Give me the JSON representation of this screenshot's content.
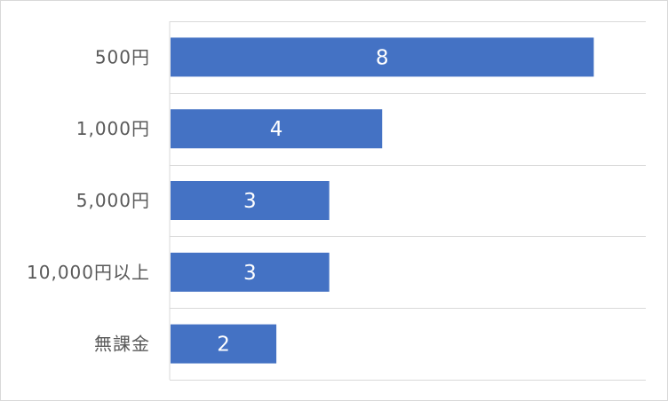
{
  "chart_data": {
    "type": "bar",
    "orientation": "horizontal",
    "categories": [
      "500円",
      "1,000円",
      "5,000円",
      "10,000円以上",
      "無課金"
    ],
    "values": [
      8,
      4,
      3,
      3,
      2
    ],
    "data_labels": [
      "8",
      "4",
      "3",
      "3",
      "2"
    ],
    "xlim": [
      0,
      9
    ],
    "grid": "horizontal",
    "legend": "none",
    "bar_color": "#4472C4",
    "grid_color": "#d9d9d9",
    "label_color": "#595959"
  }
}
